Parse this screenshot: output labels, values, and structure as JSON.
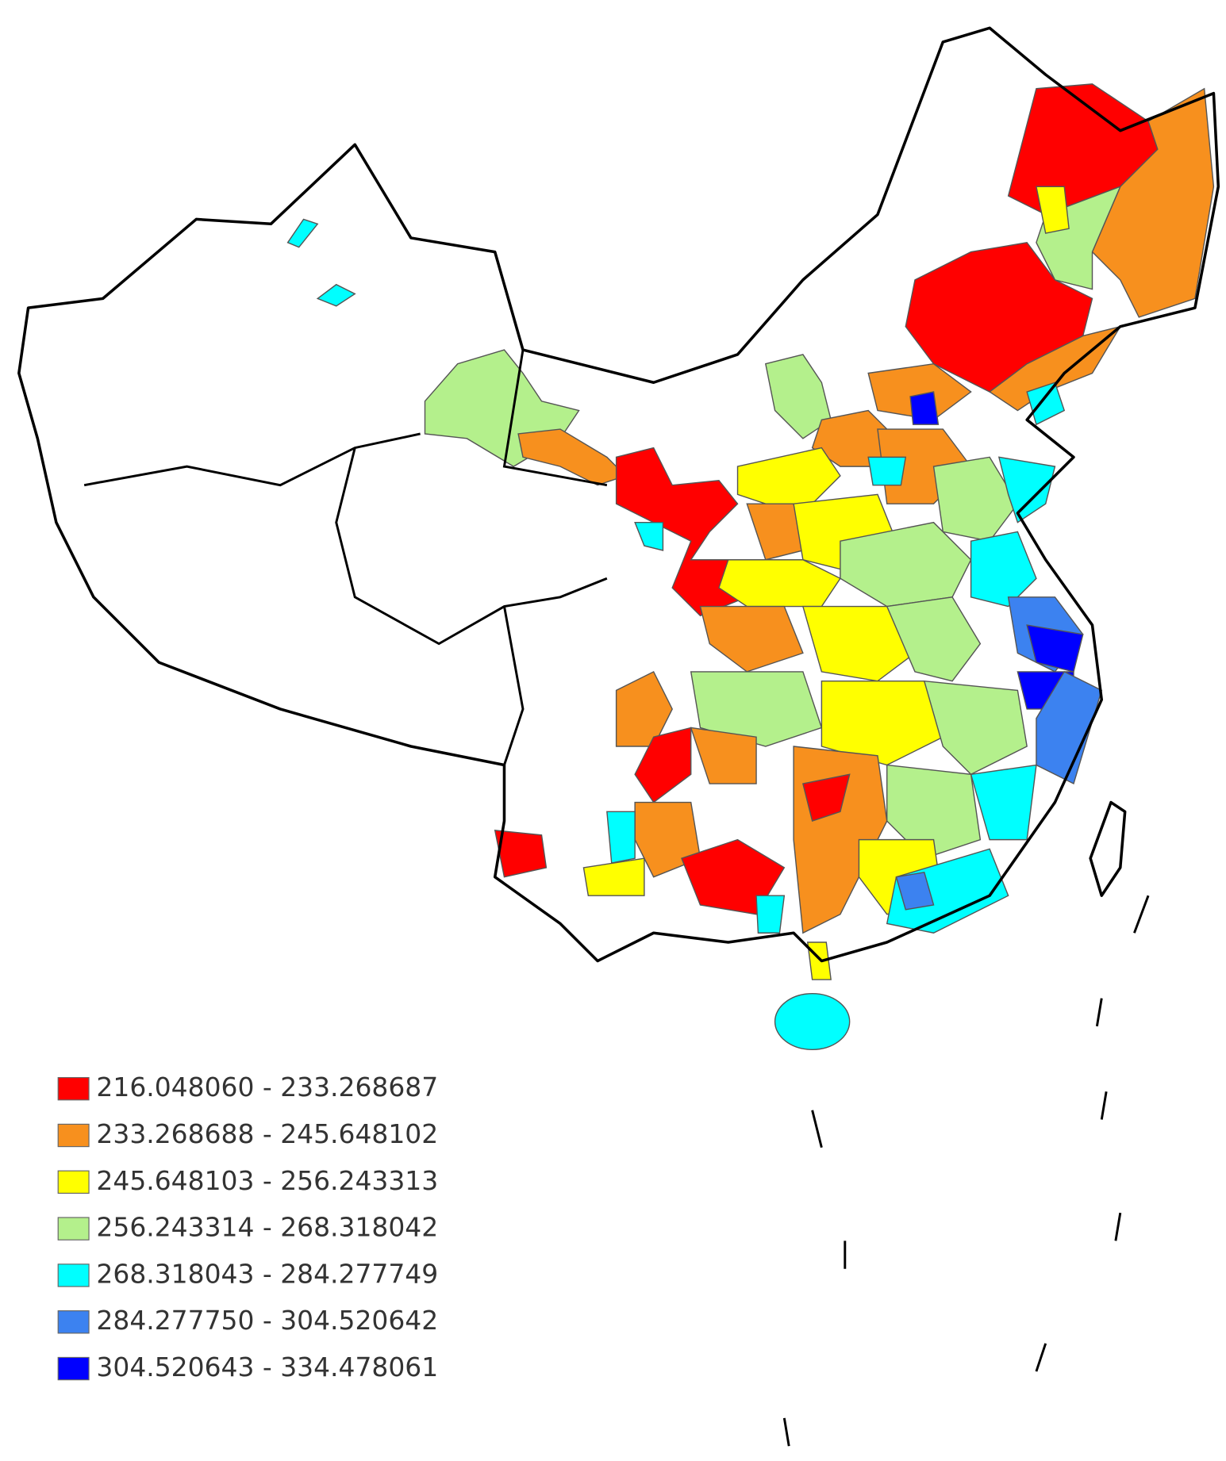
{
  "legend": {
    "items": [
      {
        "label": "216.048060 - 233.268687",
        "color": "#ff0000"
      },
      {
        "label": "233.268688 - 245.648102",
        "color": "#f7901e"
      },
      {
        "label": "245.648103 - 256.243313",
        "color": "#ffff00"
      },
      {
        "label": "256.243314 - 268.318042",
        "color": "#b4f08c"
      },
      {
        "label": "268.318043 - 284.277749",
        "color": "#00ffff"
      },
      {
        "label": "284.277750 - 304.520642",
        "color": "#3c82f0"
      },
      {
        "label": "304.520643 - 334.478061",
        "color": "#0000ff"
      }
    ]
  }
}
